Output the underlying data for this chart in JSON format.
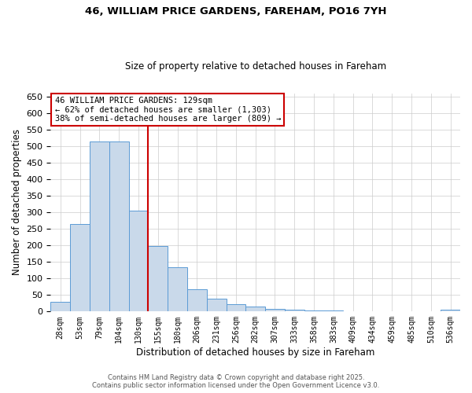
{
  "title1": "46, WILLIAM PRICE GARDENS, FAREHAM, PO16 7YH",
  "title2": "Size of property relative to detached houses in Fareham",
  "xlabel": "Distribution of detached houses by size in Fareham",
  "ylabel": "Number of detached properties",
  "categories": [
    "28sqm",
    "53sqm",
    "79sqm",
    "104sqm",
    "130sqm",
    "155sqm",
    "180sqm",
    "206sqm",
    "231sqm",
    "256sqm",
    "282sqm",
    "307sqm",
    "333sqm",
    "358sqm",
    "383sqm",
    "409sqm",
    "434sqm",
    "459sqm",
    "485sqm",
    "510sqm",
    "536sqm"
  ],
  "values": [
    30,
    265,
    515,
    515,
    305,
    198,
    133,
    68,
    38,
    22,
    15,
    8,
    6,
    4,
    2,
    1,
    1,
    1,
    1,
    1,
    5
  ],
  "bar_color": "#c9d9ea",
  "bar_edge_color": "#5b9bd5",
  "red_line_x": 4.5,
  "red_line_color": "#cc0000",
  "ylim": [
    0,
    660
  ],
  "yticks": [
    0,
    50,
    100,
    150,
    200,
    250,
    300,
    350,
    400,
    450,
    500,
    550,
    600,
    650
  ],
  "annotation_line1": "46 WILLIAM PRICE GARDENS: 129sqm",
  "annotation_line2": "← 62% of detached houses are smaller (1,303)",
  "annotation_line3": "38% of semi-detached houses are larger (809) →",
  "annotation_box_color": "#cc0000",
  "footer1": "Contains HM Land Registry data © Crown copyright and database right 2025.",
  "footer2": "Contains public sector information licensed under the Open Government Licence v3.0.",
  "bg_color": "#ffffff",
  "grid_color": "#cccccc",
  "fig_width": 6.0,
  "fig_height": 5.0,
  "dpi": 100
}
